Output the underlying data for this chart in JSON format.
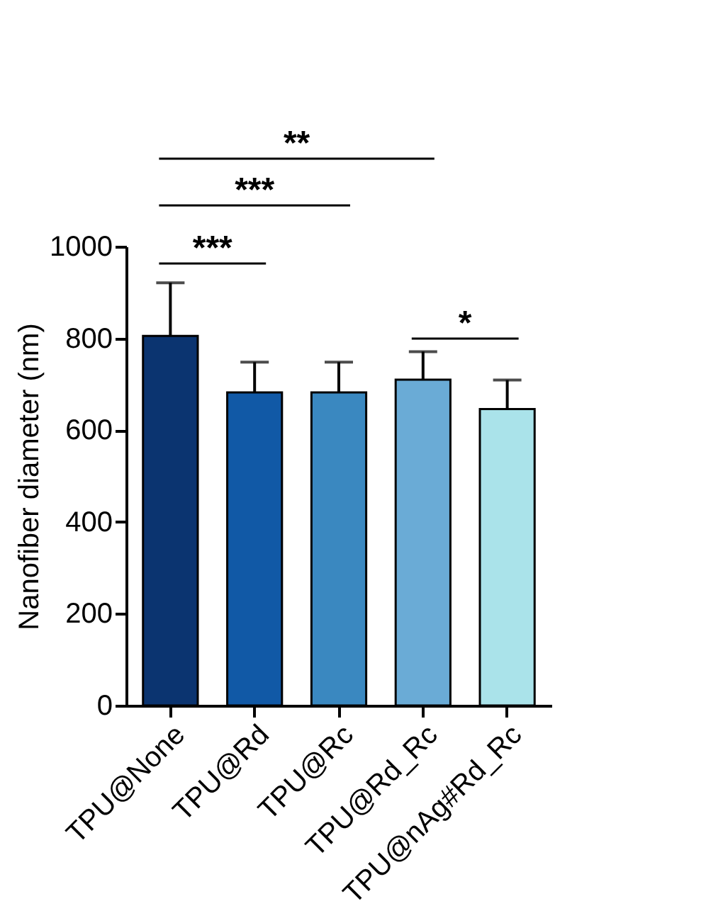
{
  "chart_data": {
    "type": "bar",
    "ylabel": "Nanofiber diameter (nm)",
    "categories": [
      "TPU@None",
      "TPU@Rd",
      "TPU@Rc",
      "TPU@Rd_Rc",
      "TPU@nAg#Rd_Rc"
    ],
    "values": [
      805,
      682,
      682,
      710,
      646
    ],
    "errors": [
      [
        805,
        921
      ],
      [
        682,
        748
      ],
      [
        682,
        748
      ],
      [
        710,
        771
      ],
      [
        646,
        709
      ]
    ],
    "colors": [
      "#0b3470",
      "#1159a6",
      "#3a88c0",
      "#6aabd6",
      "#aae3ea"
    ],
    "ylim": [
      0,
      1000
    ],
    "yticks": [
      0,
      200,
      400,
      600,
      800,
      1000
    ],
    "grid": false,
    "annotations": [
      "**",
      "***",
      "***",
      "*"
    ]
  }
}
